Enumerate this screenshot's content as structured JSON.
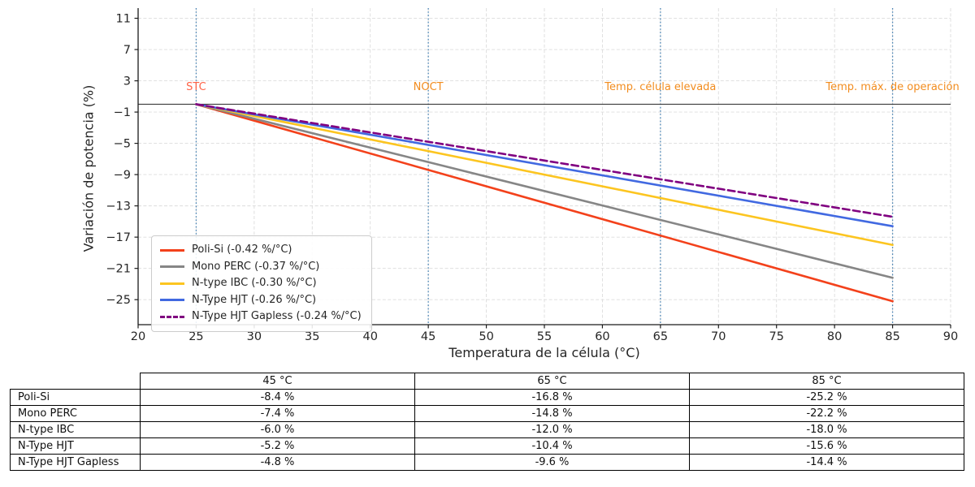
{
  "chart_data": {
    "type": "line",
    "xlabel": "Temperatura de la célula (°C)",
    "ylabel": "Variación de potencia (%)",
    "xlim": [
      20,
      90
    ],
    "ylim": [
      -28.2,
      12.3
    ],
    "xticks": [
      20,
      25,
      30,
      35,
      40,
      45,
      50,
      55,
      60,
      65,
      70,
      75,
      80,
      85,
      90
    ],
    "yticks": [
      11,
      7,
      3,
      -1,
      -5,
      -9,
      -13,
      -17,
      -21,
      -25
    ],
    "grid": true,
    "zero_line_y": 0,
    "x": [
      25,
      85
    ],
    "series": [
      {
        "name": "Poli-Si (-0.42 %/°C)",
        "coeff_pct_per_C": -0.42,
        "color": "#f3411b",
        "dash": false,
        "y": [
          0,
          -25.2
        ]
      },
      {
        "name": "Mono PERC (-0.37 %/°C)",
        "coeff_pct_per_C": -0.37,
        "color": "#868686",
        "dash": false,
        "y": [
          0,
          -22.2
        ]
      },
      {
        "name": "N-type IBC (-0.30 %/°C)",
        "coeff_pct_per_C": -0.3,
        "color": "#fcc520",
        "dash": false,
        "y": [
          0,
          -18.0
        ]
      },
      {
        "name": "N-Type HJT (-0.26 %/°C)",
        "coeff_pct_per_C": -0.26,
        "color": "#4169e1",
        "dash": false,
        "y": [
          0,
          -15.6
        ]
      },
      {
        "name": "N-Type HJT Gapless (-0.24 %/°C)",
        "coeff_pct_per_C": -0.24,
        "color": "#800080",
        "dash": true,
        "y": [
          0,
          -14.4
        ]
      }
    ],
    "reference_lines": [
      {
        "x": 25,
        "label": "STC",
        "label_color": "#ff6347",
        "line_color": "#4682b4"
      },
      {
        "x": 45,
        "label": "NOCT",
        "label_color": "#f28c1e",
        "line_color": "#4682b4"
      },
      {
        "x": 65,
        "label": "Temp. célula elevada",
        "label_color": "#f28c1e",
        "line_color": "#4682b4"
      },
      {
        "x": 85,
        "label": "Temp. máx. de operación",
        "label_color": "#f28c1e",
        "line_color": "#4682b4"
      }
    ],
    "legend_position": "lower-left"
  },
  "table": {
    "corner": "",
    "columns": [
      "45 °C",
      "65 °C",
      "85 °C"
    ],
    "rows": [
      {
        "label": "Poli-Si",
        "values": [
          "-8.4 %",
          "-16.8 %",
          "-25.2 %"
        ]
      },
      {
        "label": "Mono PERC",
        "values": [
          "-7.4 %",
          "-14.8 %",
          "-22.2 %"
        ]
      },
      {
        "label": "N-type IBC",
        "values": [
          "-6.0 %",
          "-12.0 %",
          "-18.0 %"
        ]
      },
      {
        "label": "N-Type HJT",
        "values": [
          "-5.2 %",
          "-10.4 %",
          "-15.6 %"
        ]
      },
      {
        "label": "N-Type HJT Gapless",
        "values": [
          "-4.8 %",
          "-9.6 %",
          "-14.4 %"
        ]
      }
    ]
  },
  "colors": {
    "axis_text": "#262626",
    "grid": "#dcdcdc",
    "spine": "#1a1a1a",
    "zero_line": "#3d3d3d",
    "table_border": "#000000"
  }
}
